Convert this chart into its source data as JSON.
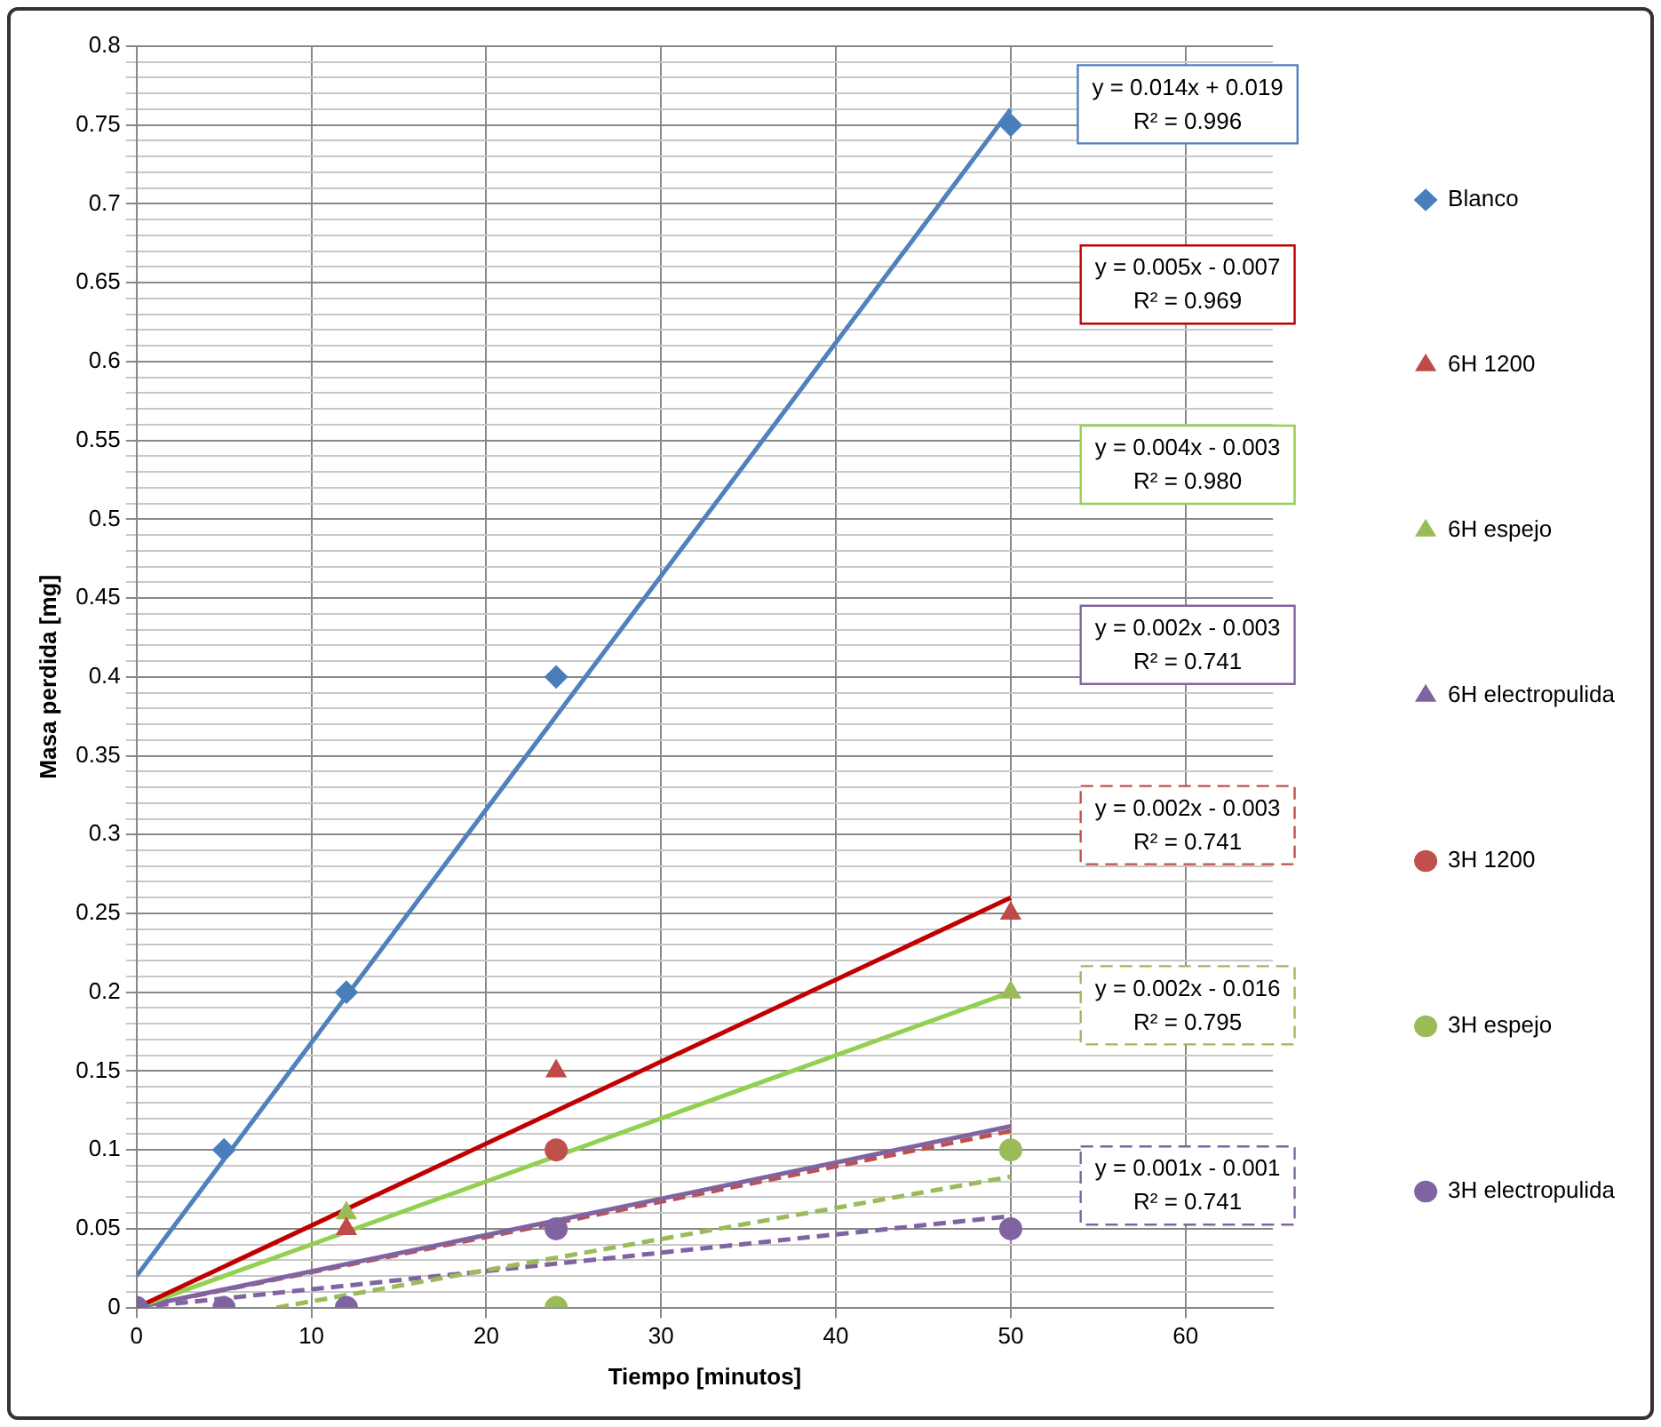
{
  "chart_data": {
    "type": "scatter",
    "xlabel": "Tiempo [minutos]",
    "ylabel": "Masa perdida [mg]",
    "x": [
      0,
      5,
      12,
      24,
      50
    ],
    "xlim": [
      0,
      65
    ],
    "xticks": [
      0,
      10,
      20,
      30,
      40,
      50,
      60
    ],
    "ylim": [
      0,
      0.8
    ],
    "yticks": [
      0,
      {
        "value": 0.01,
        "label": null
      },
      {
        "value": 0.02,
        "label": null
      },
      {
        "value": 0.03,
        "label": null
      },
      {
        "value": 0.04,
        "label": null
      },
      0.05,
      {
        "value": 0.06,
        "label": null
      },
      {
        "value": 0.07,
        "label": null
      },
      {
        "value": 0.08,
        "label": null
      },
      {
        "value": 0.09,
        "label": null
      },
      0.1,
      {
        "value": 0.11,
        "label": null
      },
      {
        "value": 0.12,
        "label": null
      },
      {
        "value": 0.13,
        "label": null
      },
      {
        "value": 0.14,
        "label": null
      },
      0.15,
      {
        "value": 0.16,
        "label": null
      },
      {
        "value": 0.17,
        "label": null
      },
      {
        "value": 0.18,
        "label": null
      },
      {
        "value": 0.19,
        "label": null
      },
      0.2,
      {
        "value": 0.21,
        "label": null
      },
      {
        "value": 0.22,
        "label": null
      },
      {
        "value": 0.23,
        "label": null
      },
      {
        "value": 0.24,
        "label": null
      },
      0.25,
      {
        "value": 0.26,
        "label": null
      },
      {
        "value": 0.27,
        "label": null
      },
      {
        "value": 0.28,
        "label": null
      },
      {
        "value": 0.29,
        "label": null
      },
      0.3,
      {
        "value": 0.31,
        "label": null
      },
      {
        "value": 0.32,
        "label": null
      },
      {
        "value": 0.33,
        "label": null
      },
      {
        "value": 0.34,
        "label": null
      },
      0.35,
      {
        "value": 0.36,
        "label": null
      },
      {
        "value": 0.37,
        "label": null
      },
      {
        "value": 0.38,
        "label": null
      },
      {
        "value": 0.39,
        "label": null
      },
      0.4,
      {
        "value": 0.41,
        "label": null
      },
      {
        "value": 0.42,
        "label": null
      },
      {
        "value": 0.43,
        "label": null
      },
      {
        "value": 0.44,
        "label": null
      },
      0.45,
      {
        "value": 0.46,
        "label": null
      },
      {
        "value": 0.47,
        "label": null
      },
      {
        "value": 0.48,
        "label": null
      },
      {
        "value": 0.49,
        "label": null
      },
      0.5,
      {
        "value": 0.51,
        "label": null
      },
      {
        "value": 0.52,
        "label": null
      },
      {
        "value": 0.53,
        "label": null
      },
      {
        "value": 0.54,
        "label": null
      },
      0.55,
      {
        "value": 0.56,
        "label": null
      },
      {
        "value": 0.57,
        "label": null
      },
      {
        "value": 0.58,
        "label": null
      },
      {
        "value": 0.59,
        "label": null
      },
      0.6,
      {
        "value": 0.61,
        "label": null
      },
      {
        "value": 0.62,
        "label": null
      },
      {
        "value": 0.63,
        "label": null
      },
      {
        "value": 0.64,
        "label": null
      },
      0.65,
      {
        "value": 0.66,
        "label": null
      },
      {
        "value": 0.67,
        "label": null
      },
      {
        "value": 0.68,
        "label": null
      },
      {
        "value": 0.69,
        "label": null
      },
      0.7,
      {
        "value": 0.71,
        "label": null
      },
      {
        "value": 0.72,
        "label": null
      },
      {
        "value": 0.73,
        "label": null
      },
      {
        "value": 0.74,
        "label": null
      },
      0.75,
      {
        "value": 0.76,
        "label": null
      },
      {
        "value": 0.77,
        "label": null
      },
      {
        "value": 0.78,
        "label": null
      },
      {
        "value": 0.79,
        "label": null
      },
      0.8
    ],
    "grid": true,
    "legend": "right",
    "series": [
      {
        "name": "Blanco",
        "color": "#4a7ebb",
        "marker": "diamond",
        "values": [
          null,
          0.1,
          0.2,
          0.4,
          0.75
        ]
      },
      {
        "name": "6H 1200",
        "color": "#be4b48",
        "marker": "triangle",
        "values": [
          null,
          null,
          0.05,
          0.15,
          0.25
        ]
      },
      {
        "name": "6H espejo",
        "color": "#9bbb59",
        "marker": "triangle",
        "values": [
          null,
          null,
          0.06,
          null,
          0.2
        ]
      },
      {
        "name": "6H electropulida",
        "color": "#8064a2",
        "marker": "triangle",
        "values": [
          null,
          null,
          null,
          null,
          null
        ]
      },
      {
        "name": "3H 1200",
        "color": "#c0504d",
        "marker": "circle",
        "values": [
          null,
          null,
          null,
          0.1,
          null
        ]
      },
      {
        "name": "3H espejo",
        "color": "#9bbb59",
        "marker": "circle",
        "values": [
          null,
          null,
          null,
          0,
          0.1
        ]
      },
      {
        "name": "3H electropulida",
        "color": "#8064a2",
        "marker": "circle",
        "values": [
          0,
          0,
          0,
          0.05,
          0.05
        ]
      },
      {
        "type": "line",
        "color": "#4f81bd",
        "marker": "none",
        "line_style": "solid",
        "x": [
          0,
          50
        ],
        "values": [
          0.02,
          0.76
        ]
      },
      {
        "type": "line",
        "color": "#c00000",
        "marker": "none",
        "line_style": "solid",
        "x": [
          0,
          50
        ],
        "values": [
          0,
          0.26
        ]
      },
      {
        "type": "line",
        "color": "#92d050",
        "marker": "none",
        "line_style": "solid",
        "x": [
          0,
          50
        ],
        "values": [
          0,
          0.2
        ]
      },
      {
        "type": "line",
        "color": "#8064a2",
        "marker": "none",
        "line_style": "solid",
        "x": [
          0,
          50
        ],
        "values": [
          0,
          0.115
        ]
      },
      {
        "type": "line",
        "color": "#c0504d",
        "marker": "none",
        "line_style": "dashed",
        "x": [
          0,
          50
        ],
        "values": [
          0,
          0.112
        ]
      },
      {
        "type": "line",
        "color": "#9bbb59",
        "marker": "none",
        "line_style": "dashed",
        "x": [
          8,
          50
        ],
        "values": [
          0,
          0.083
        ]
      },
      {
        "type": "line",
        "color": "#8064a2",
        "marker": "none",
        "line_style": "dashed",
        "x": [
          0,
          50
        ],
        "values": [
          0,
          0.058
        ]
      }
    ],
    "annotations": [
      "y = 0.014x + 0.019\nR² = 0.996",
      "y = 0.005x - 0.007\nR² = 0.969",
      "y = 0.004x - 0.003\nR² = 0.980",
      "y = 0.002x - 0.003\nR² = 0.741",
      "y = 0.002x - 0.003\nR² = 0.741",
      "y = 0.002x - 0.016\nR² = 0.795",
      "y = 0.001x - 0.001\nR² = 0.741"
    ]
  }
}
